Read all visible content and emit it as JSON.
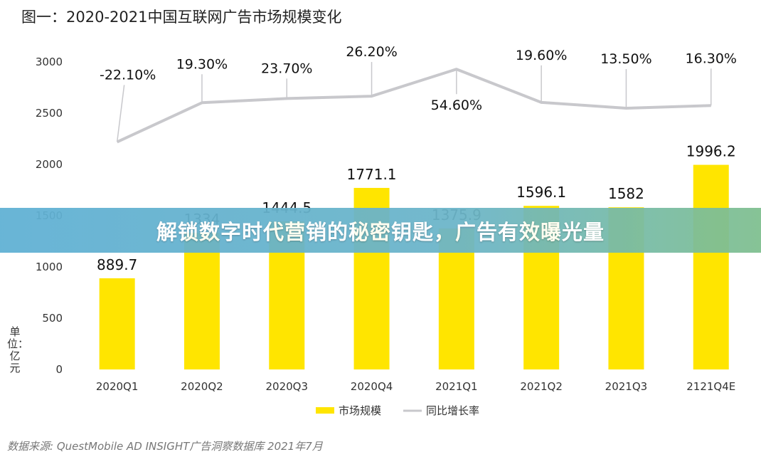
{
  "header": {
    "title": "图一：2020-2021中国互联网广告市场规模变化"
  },
  "banner": {
    "text": "解锁数字时代营销的秘密钥匙，广告有效曝光量"
  },
  "source": "数据来源: QuestMobile AD INSIGHT广告洞察数据库 2021年7月",
  "unit_label": "单位：亿元",
  "colors": {
    "bar": "#ffe500",
    "line": "#c8c8cc",
    "banner": "#66b4d0"
  },
  "chart_data": {
    "type": "bar",
    "title": "图一：2020-2021中国互联网广告市场规模变化",
    "categories": [
      "2020Q1",
      "2020Q2",
      "2020Q3",
      "2020Q4",
      "2021Q1",
      "2021Q2",
      "2021Q3",
      "2121Q4E"
    ],
    "ylim": [
      0,
      3000
    ],
    "yticks": [
      "0",
      "500",
      "1000",
      "1500",
      "2000",
      "2500",
      "3000"
    ],
    "grid": false,
    "legend_position": "bottom",
    "series": [
      {
        "name": "市场规模",
        "type": "bar",
        "values": [
          889.7,
          1334,
          1444.5,
          1771.1,
          1375.9,
          1596.1,
          1582,
          1996.2
        ],
        "labels": [
          "889.7",
          "1334",
          "1444.5",
          "1771.1",
          "1375.9",
          "1596.1",
          "1582",
          "1996.2"
        ]
      },
      {
        "name": "同比增长率",
        "type": "line",
        "values": [
          -22.1,
          19.3,
          23.7,
          26.2,
          54.6,
          19.6,
          13.5,
          16.3
        ],
        "labels": [
          "-22.10%",
          "19.30%",
          "23.70%",
          "26.20%",
          "54.60%",
          "19.60%",
          "13.50%",
          "16.30%"
        ]
      }
    ]
  }
}
